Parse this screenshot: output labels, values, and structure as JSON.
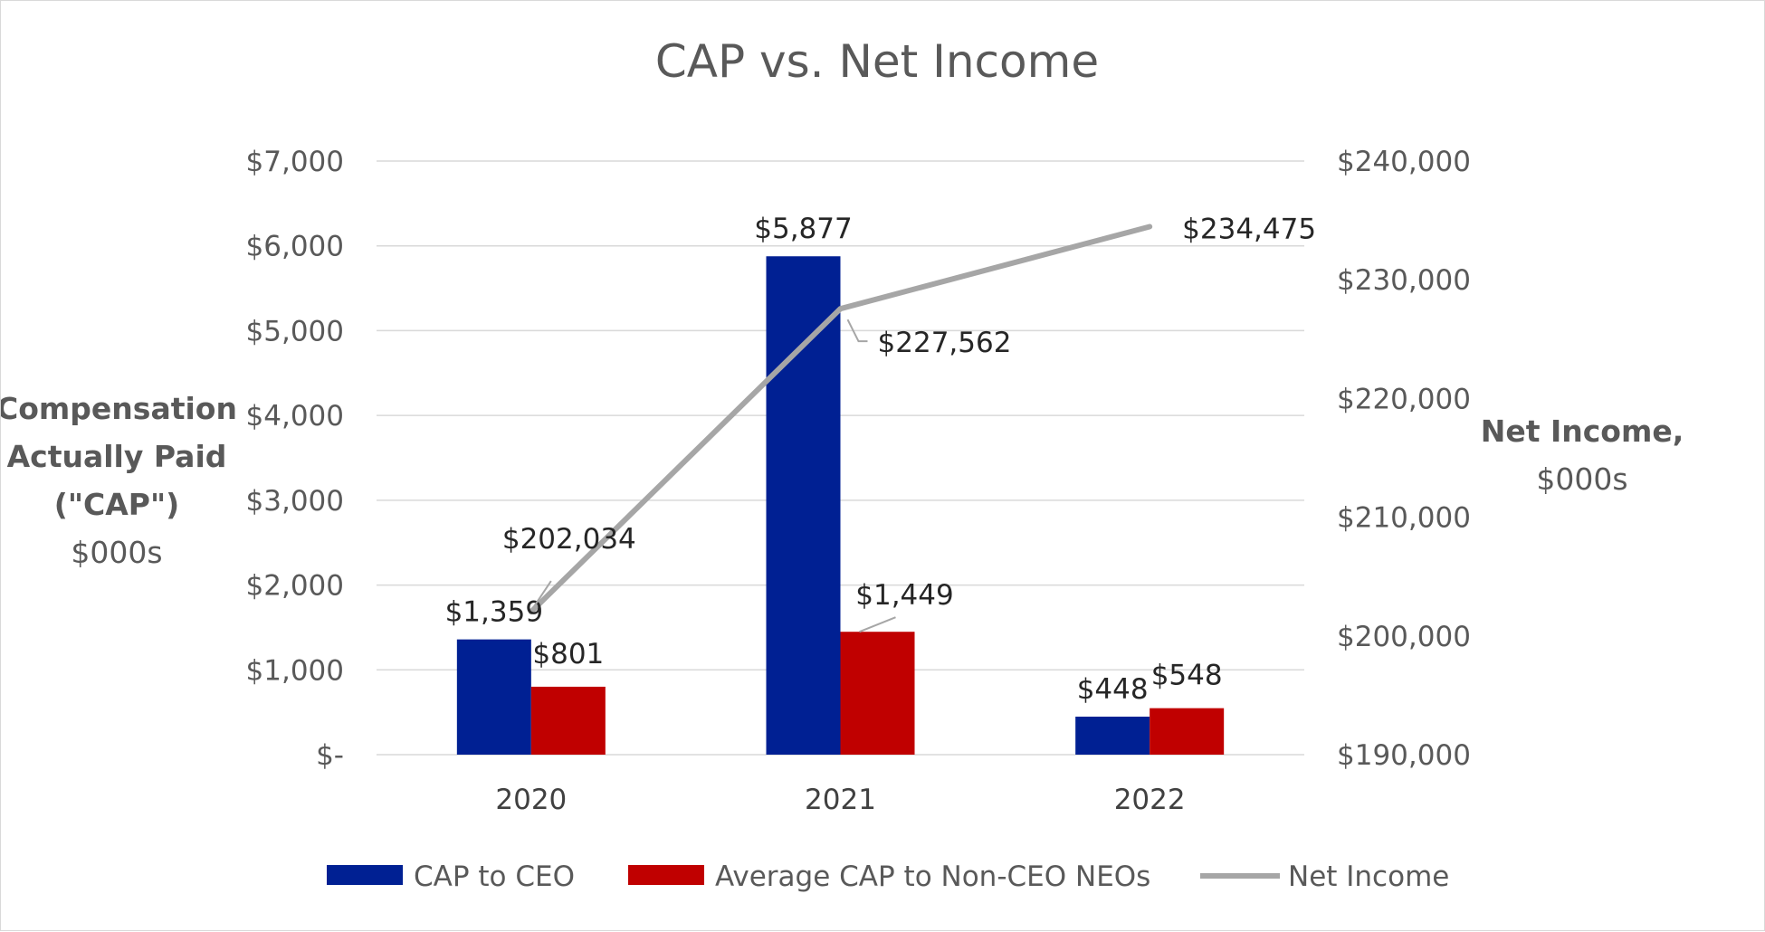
{
  "chart_data": {
    "type": "bar",
    "title": "CAP vs. Net Income",
    "categories": [
      "2020",
      "2021",
      "2022"
    ],
    "series": [
      {
        "name": "CAP to CEO",
        "kind": "bar",
        "axis": "left",
        "color": "#002093",
        "values": [
          1359,
          5877,
          448
        ],
        "labels": [
          "$1,359",
          "$5,877",
          "$448"
        ]
      },
      {
        "name": "Average CAP to Non-CEO NEOs",
        "kind": "bar",
        "axis": "left",
        "color": "#C00000",
        "values": [
          801,
          1449,
          548
        ],
        "labels": [
          "$801",
          "$1,449",
          "$548"
        ]
      },
      {
        "name": "Net Income",
        "kind": "line",
        "axis": "right",
        "color": "#A6A6A6",
        "values": [
          202034,
          227562,
          234475
        ],
        "labels": [
          "$202,034",
          "$227,562",
          "$234,475"
        ]
      }
    ],
    "left_axis": {
      "title_lines": [
        "Compensation",
        "Actually Paid",
        "(\"CAP\")"
      ],
      "title_sub": "$000s",
      "ylim": [
        0,
        7000
      ],
      "ticks": [
        0,
        1000,
        2000,
        3000,
        4000,
        5000,
        6000,
        7000
      ],
      "tick_labels": [
        "$-",
        "$1,000",
        "$2,000",
        "$3,000",
        "$4,000",
        "$5,000",
        "$6,000",
        "$7,000"
      ]
    },
    "right_axis": {
      "title_line1": "Net Income,",
      "title_line2": "$000s",
      "ylim": [
        190000,
        240000
      ],
      "ticks": [
        190000,
        200000,
        210000,
        220000,
        230000,
        240000
      ],
      "tick_labels": [
        "$190,000",
        "$200,000",
        "$210,000",
        "$220,000",
        "$230,000",
        "$240,000"
      ]
    },
    "legend_position": "bottom",
    "grid": true
  }
}
